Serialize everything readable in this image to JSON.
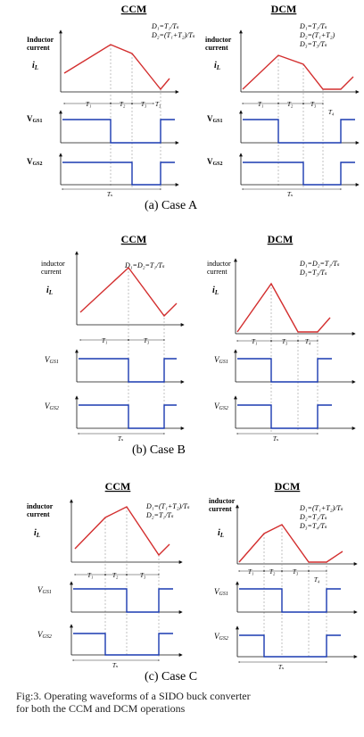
{
  "panels": [
    {
      "case_label": "(a)  Case A",
      "ccm": {
        "title": "CCM",
        "y_label_1": "Inductor",
        "y_label_2": "current",
        "il_label": "i",
        "il_sub": "L",
        "eq": [
          "D₁=T₁/Tₛ",
          "D₂=(T₁+T₂)/Tₛ"
        ],
        "t_labels": [
          "T₁",
          "T₂",
          "T₃",
          "T₃"
        ],
        "vgs1_label": "V",
        "vgs1_sub": "GS1",
        "vgs2_label": "V",
        "vgs2_sub": "GS2",
        "ts_label": "Tₛ"
      },
      "dcm": {
        "title": "DCM",
        "y_label_1": "inductor",
        "y_label_2": "current",
        "il_label": "i",
        "il_sub": "L",
        "eq": [
          "D₁=T₁/Tₛ",
          "D₂=(T₁+T₂)",
          "D₃=T₃/Tₛ"
        ],
        "t_labels": [
          "T₁",
          "T₂",
          "T₃",
          "T₄"
        ],
        "vgs1_label": "V",
        "vgs1_sub": "GS1",
        "vgs2_label": "V",
        "vgs2_sub": "GS2",
        "ts_label": "Tₛ"
      }
    },
    {
      "case_label": "(b)   Case B",
      "ccm": {
        "title": "CCM",
        "y_label_1": "inductor",
        "y_label_2": "current",
        "il_label": "i",
        "il_sub": "L",
        "eq": [
          "D₁=D₂=T₁/Tₛ"
        ],
        "t_labels": [
          "T₁",
          "T₃"
        ],
        "vgs1_label": "V",
        "vgs1_sub": "GS1",
        "vgs2_label": "V",
        "vgs2_sub": "GS2",
        "ts_label": "Tₛ"
      },
      "dcm": {
        "title": "DCM",
        "y_label_1": "inductor",
        "y_label_2": "current",
        "il_label": "i",
        "il_sub": "L",
        "eq": [
          "D₁=D₂=T₁/Tₛ",
          "D₃=T₃/Tₛ"
        ],
        "t_labels": [
          "T₁",
          "T₃",
          "T₄"
        ],
        "vgs1_label": "V",
        "vgs1_sub": "GS1",
        "vgs2_label": "V",
        "vgs2_sub": "GS2",
        "ts_label": "Tₛ"
      }
    },
    {
      "case_label": "(c)     Case C",
      "ccm": {
        "title": "CCM",
        "y_label_1": "inductor",
        "y_label_2": "current",
        "il_label": "i",
        "il_sub": "L",
        "eq": [
          "D₁=(T₁+T₂)/Tₛ",
          "D₂=T₁/Tₛ"
        ],
        "t_labels": [
          "T₁",
          "T₂",
          "T₃"
        ],
        "vgs1_label": "V",
        "vgs1_sub": "GS1",
        "vgs2_label": "V",
        "vgs2_sub": "GS2",
        "ts_label": "Tₛ"
      },
      "dcm": {
        "title": "DCM",
        "y_label_1": "inductor",
        "y_label_2": "current",
        "il_label": "i",
        "il_sub": "L",
        "eq": [
          "D₁=(T₁+T₂)/Tₛ",
          "D₂=T₁/Tₛ",
          "D₃=T₄/Tₛ"
        ],
        "t_labels": [
          "T₁",
          "T₂",
          "T₃",
          "T₄"
        ],
        "vgs1_label": "V",
        "vgs1_sub": "GS1",
        "vgs2_label": "V",
        "vgs2_sub": "GS2",
        "ts_label": "Tₛ"
      }
    }
  ],
  "caption": {
    "line1": "Fig:3.  Operating  waveforms  of  a  SIDO  buck  converter",
    "line2": "for both the CCM and DCM operations"
  },
  "colors": {
    "inductor_current": "#d32f2f",
    "gate_signal": "#1a3ab0",
    "axis": "#111111",
    "guide": "#9a9a9a"
  }
}
